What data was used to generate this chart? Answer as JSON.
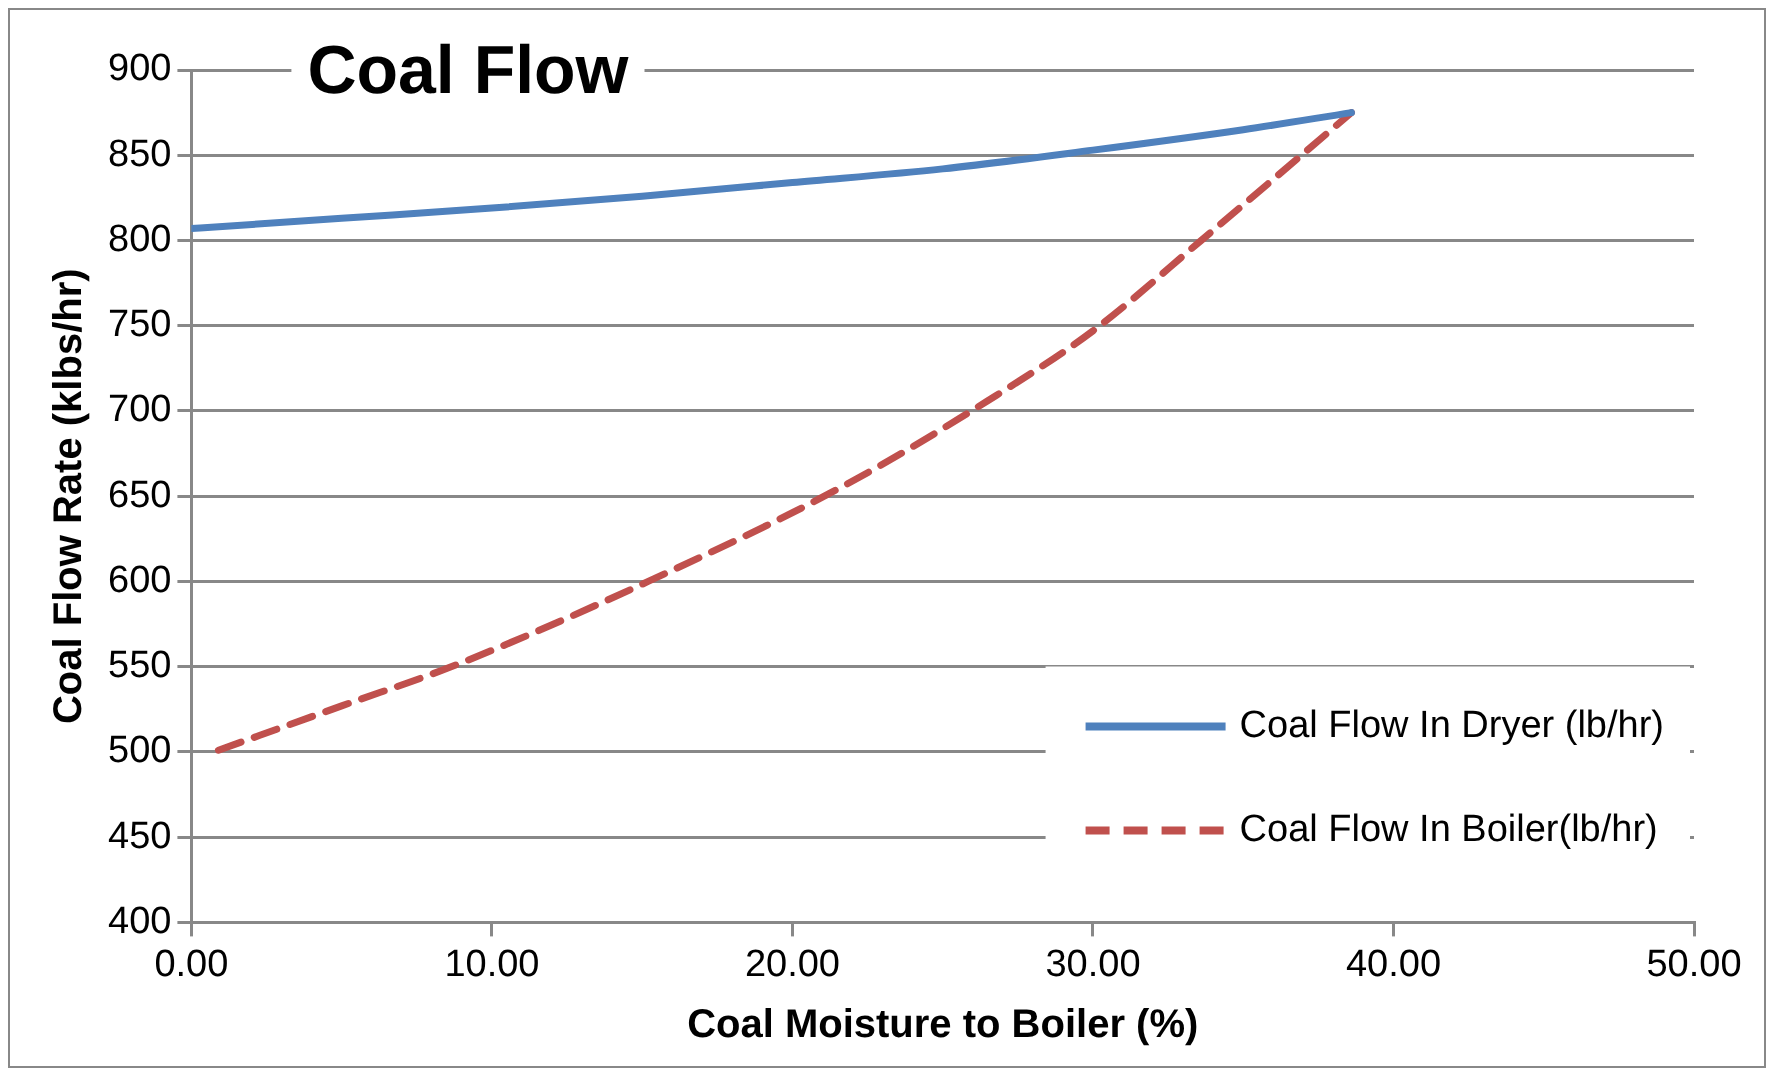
{
  "chart_data": {
    "type": "line",
    "title": "Coal Flow",
    "xlabel": "Coal Moisture to Boiler (%)",
    "ylabel": "Coal Flow Rate (klbs/hr)",
    "xlim": [
      0,
      50
    ],
    "xticks": [
      {
        "value": 0,
        "label": "0.00"
      },
      {
        "value": 10,
        "label": "10.00"
      },
      {
        "value": 20,
        "label": "20.00"
      },
      {
        "value": 30,
        "label": "30.00"
      },
      {
        "value": 40,
        "label": "40.00"
      },
      {
        "value": 50,
        "label": "50.00"
      }
    ],
    "ylim": [
      400,
      900
    ],
    "yticks": [
      400,
      450,
      500,
      550,
      600,
      650,
      700,
      750,
      800,
      850,
      900
    ],
    "grid": "y",
    "legend": "bottom right",
    "marker": "none",
    "series": [
      {
        "name": "Coal Flow In Dryer (lb/hr)",
        "color": "#4f81bd",
        "line_style": "solid",
        "x": [
          0,
          5,
          10,
          15,
          20,
          25,
          30,
          35,
          38.6
        ],
        "values": [
          807,
          813,
          819,
          826,
          834,
          842,
          853,
          865,
          875
        ]
      },
      {
        "name": "Coal Flow In Boiler(lb/hr)",
        "color": "#c0504d",
        "line_style": "dashed",
        "x": [
          0.9,
          5,
          8.8,
          15.2,
          21.7,
          26.5,
          30,
          33.6,
          38.6
        ],
        "values": [
          501,
          527,
          551,
          600,
          656,
          706,
          747,
          800,
          875
        ]
      }
    ]
  }
}
